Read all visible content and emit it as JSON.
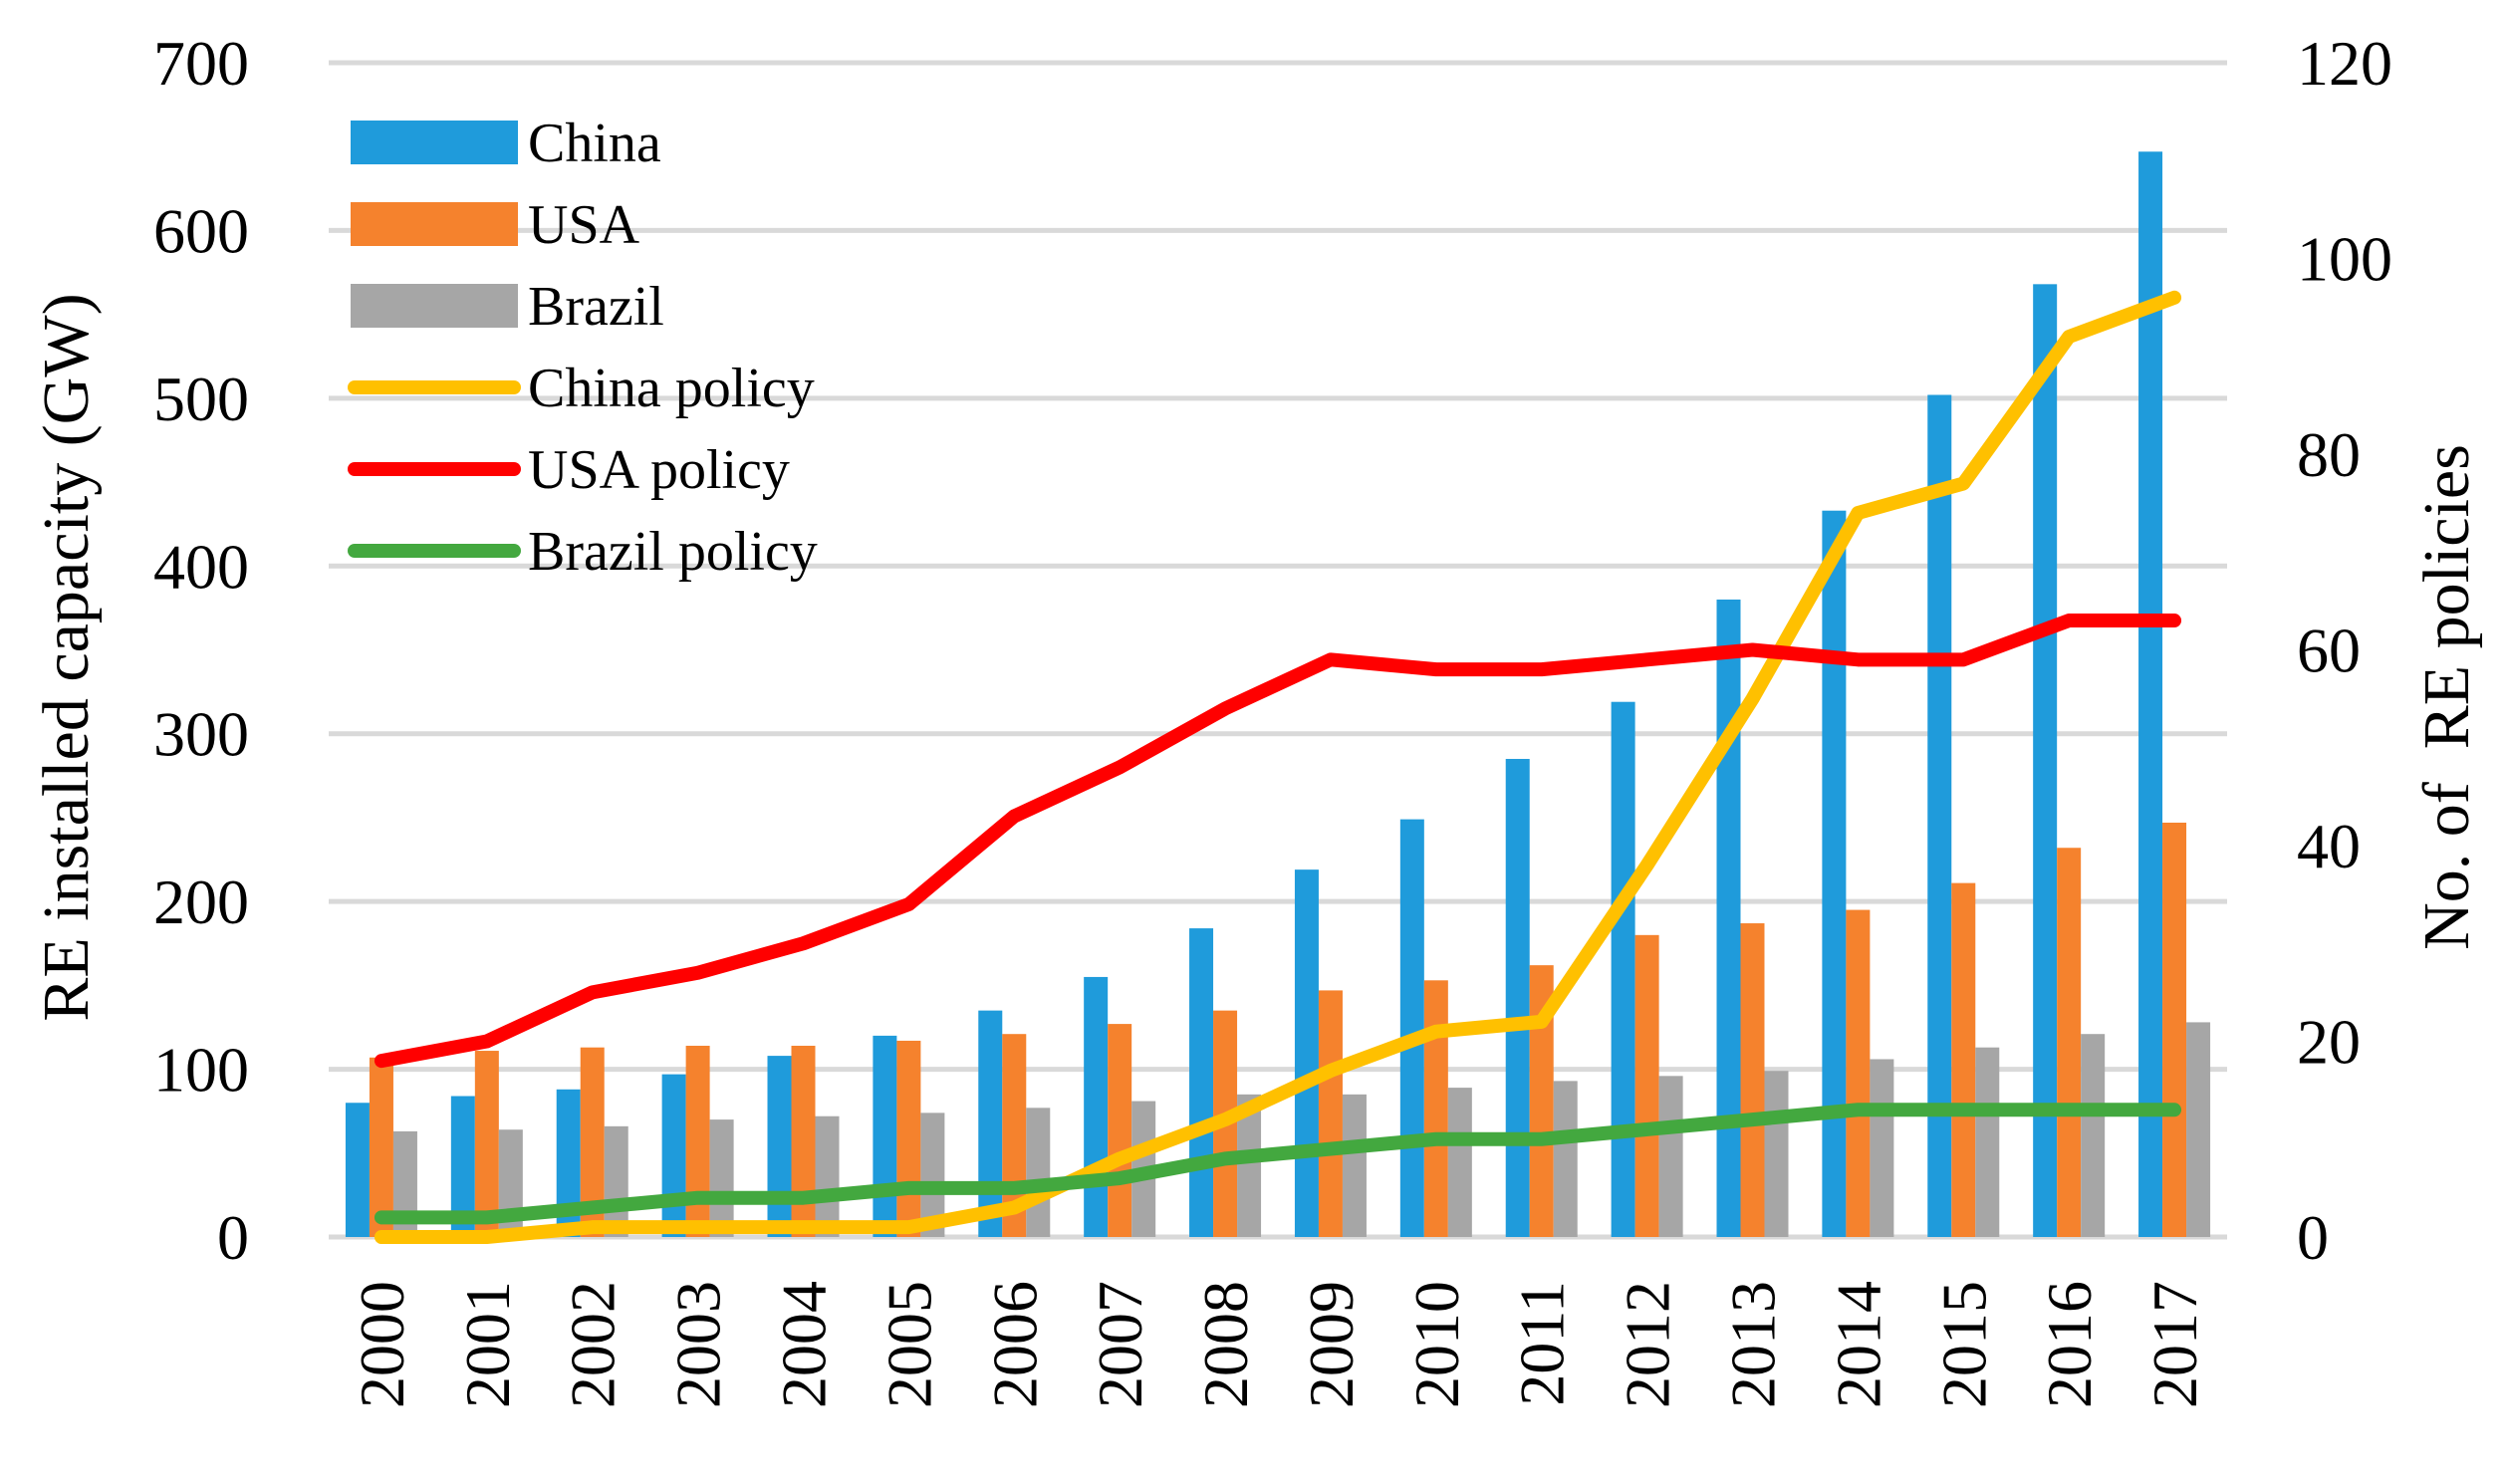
{
  "chart_data": {
    "type": "bar",
    "title": "",
    "categories": [
      "2000",
      "2001",
      "2002",
      "2003",
      "2004",
      "2005",
      "2006",
      "2007",
      "2008",
      "2009",
      "2010",
      "2011",
      "2012",
      "2013",
      "2014",
      "2015",
      "2016",
      "2017"
    ],
    "ylabel": "RE installed capacity (GW)",
    "y2label": "No. of  RE policies",
    "ylim": [
      0,
      700
    ],
    "y2lim": [
      0,
      120
    ],
    "yticks": [
      0,
      100,
      200,
      300,
      400,
      500,
      600,
      700
    ],
    "y2ticks": [
      0,
      20,
      40,
      60,
      80,
      100,
      120
    ],
    "grid": true,
    "legend_position": "top-left",
    "bar_series": [
      {
        "name": "China",
        "color": "#1f9bdb",
        "values": [
          80,
          84,
          88,
          97,
          108,
          120,
          135,
          155,
          184,
          219,
          249,
          285,
          319,
          380,
          433,
          502,
          568,
          647
        ]
      },
      {
        "name": "USA",
        "color": "#f5822d",
        "values": [
          107,
          111,
          113,
          114,
          114,
          117,
          121,
          127,
          135,
          147,
          153,
          162,
          180,
          187,
          195,
          211,
          232,
          247
        ]
      },
      {
        "name": "Brazil",
        "color": "#a6a6a6",
        "values": [
          63,
          64,
          66,
          70,
          72,
          74,
          77,
          81,
          85,
          85,
          89,
          93,
          96,
          99,
          106,
          113,
          121,
          128
        ]
      }
    ],
    "line_series": [
      {
        "name": "China policy",
        "color": "#ffc000",
        "axis": "right",
        "values": [
          0,
          0,
          1,
          1,
          1,
          1,
          3,
          8,
          12,
          17,
          21,
          22,
          38,
          55,
          74,
          77,
          92,
          96
        ]
      },
      {
        "name": "USA policy",
        "color": "#ff0000",
        "axis": "right",
        "values": [
          18,
          20,
          25,
          27,
          30,
          34,
          43,
          48,
          54,
          59,
          58,
          58,
          59,
          60,
          59,
          59,
          63,
          63
        ]
      },
      {
        "name": "Brazil policy",
        "color": "#43a83f",
        "axis": "right",
        "values": [
          2,
          2,
          3,
          4,
          4,
          5,
          5,
          6,
          8,
          9,
          10,
          10,
          11,
          12,
          13,
          13,
          13,
          13
        ]
      }
    ]
  }
}
